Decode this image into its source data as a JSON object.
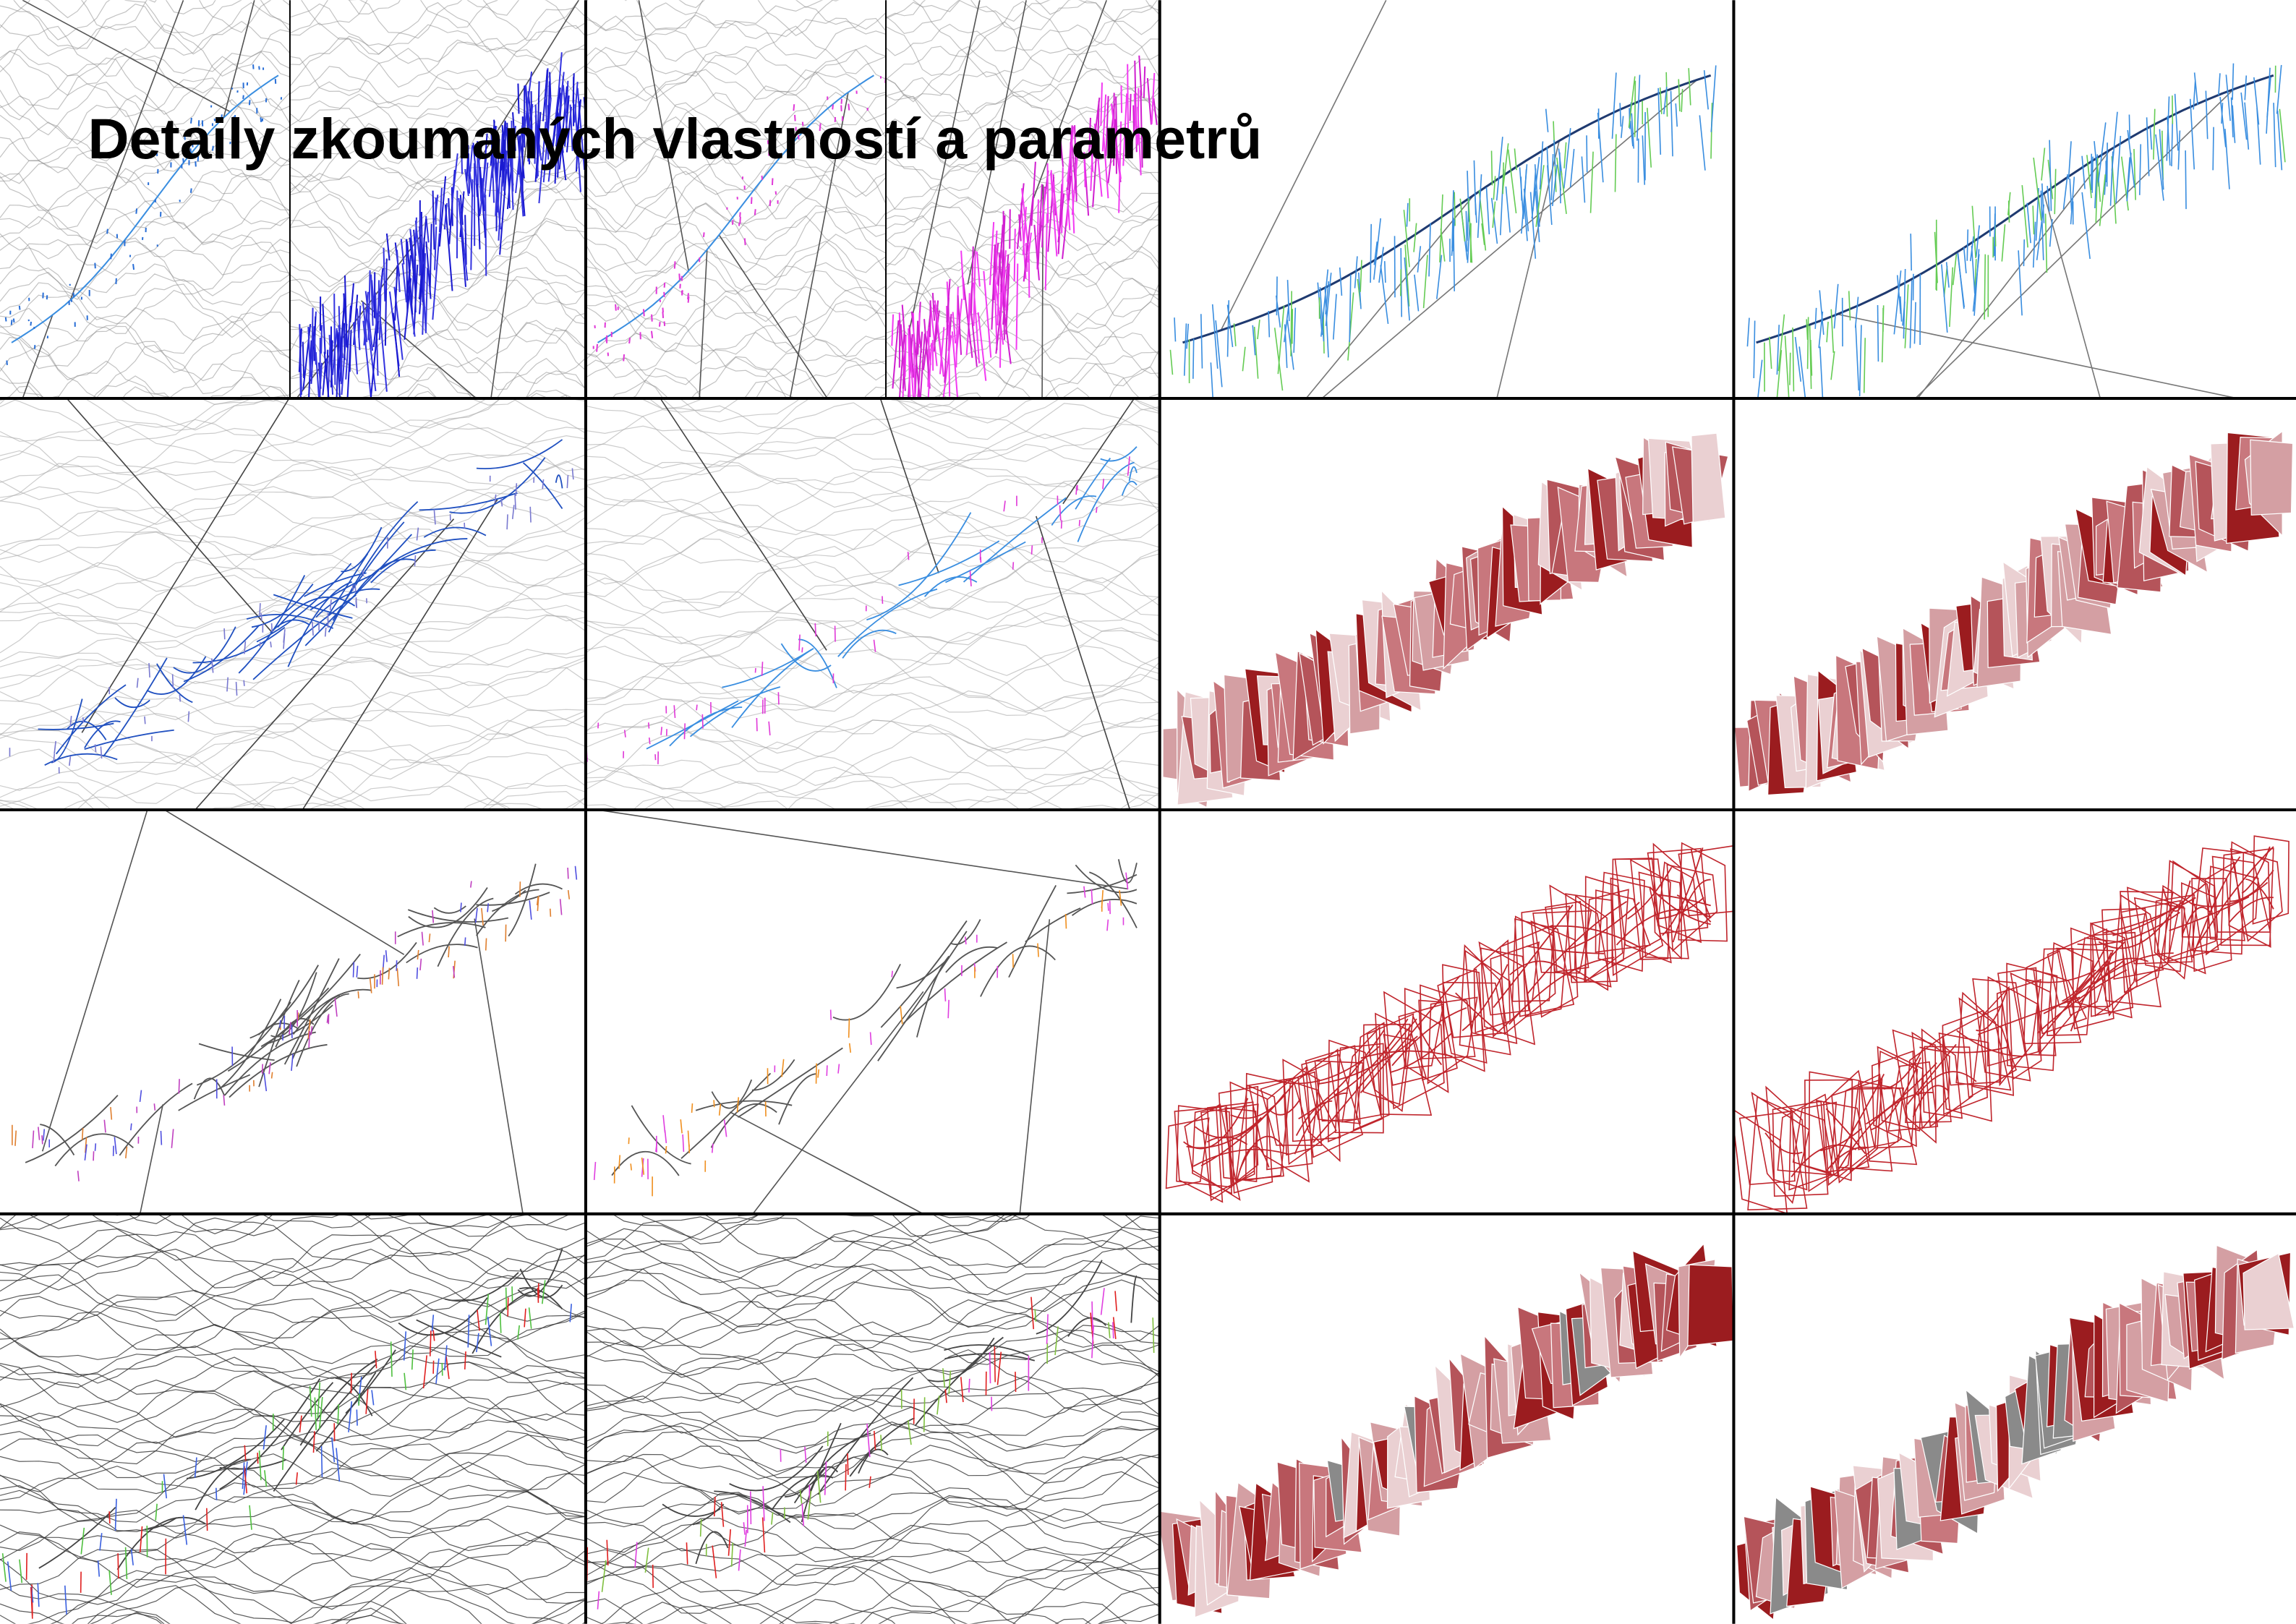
{
  "header": {
    "title": "Detaily zkoumaných vlastností a parametrů"
  }
}
